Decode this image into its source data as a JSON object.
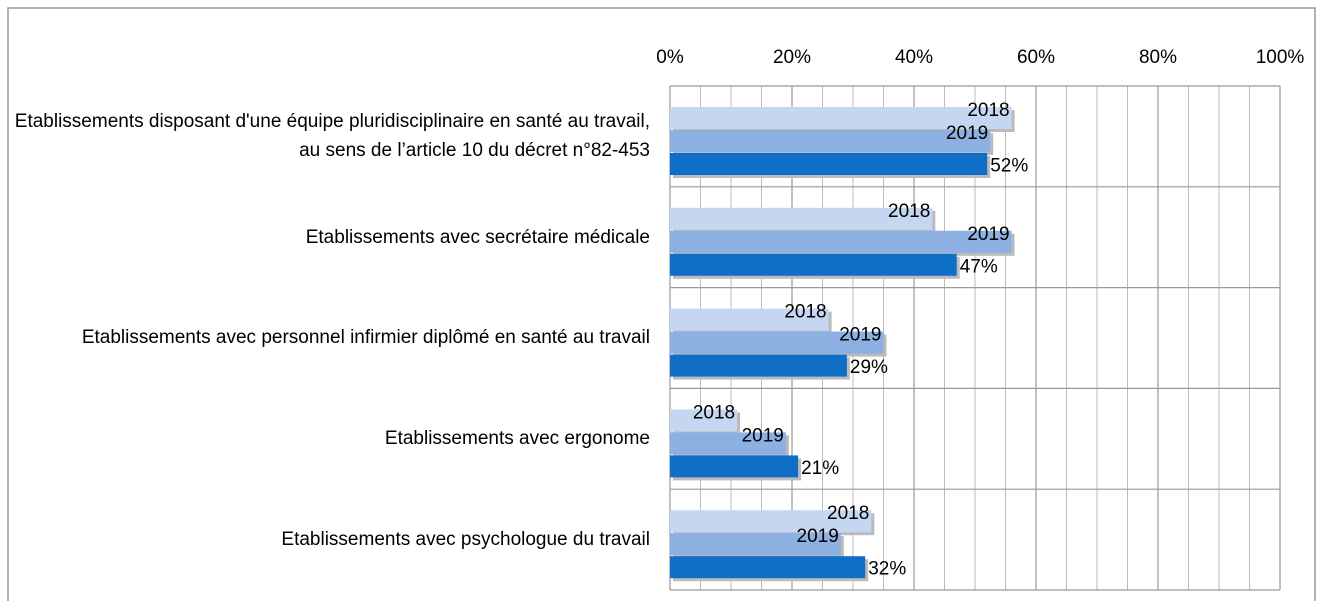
{
  "chart_data": {
    "type": "bar",
    "orientation": "horizontal",
    "categories": [
      "Etablissements disposant d'une équipe pluridisciplinaire en santé au travail, au sens de l’article 10 du décret n°82-453",
      "Etablissements avec secrétaire médicale",
      "Etablissements avec personnel infirmier diplômé en santé au travail",
      "Etablissements avec ergonome",
      "Etablissements avec psychologue du travail"
    ],
    "series": [
      {
        "name": "2018",
        "color": "#c5d7f0",
        "values": [
          56,
          43,
          26,
          11,
          33
        ]
      },
      {
        "name": "2019",
        "color": "#8db0e2",
        "values": [
          52.5,
          56,
          35,
          19,
          28
        ]
      },
      {
        "color": "#0f6fc6",
        "values": [
          52,
          47,
          29,
          21,
          32
        ],
        "value_labels": [
          "52%",
          "47%",
          "29%",
          "21%",
          "32%"
        ]
      }
    ],
    "xlim": [
      0,
      100
    ],
    "xticks": [
      {
        "value": 0,
        "label": "0%"
      },
      {
        "value": 20,
        "label": "20%"
      },
      {
        "value": 40,
        "label": "40%"
      },
      {
        "value": 60,
        "label": "60%"
      },
      {
        "value": 80,
        "label": "80%"
      },
      {
        "value": 100,
        "label": "100%"
      }
    ],
    "xminor_ticks": [
      5,
      10,
      15,
      25,
      30,
      35,
      45,
      50,
      55,
      65,
      70,
      75,
      85,
      90,
      95
    ],
    "grid": true
  }
}
